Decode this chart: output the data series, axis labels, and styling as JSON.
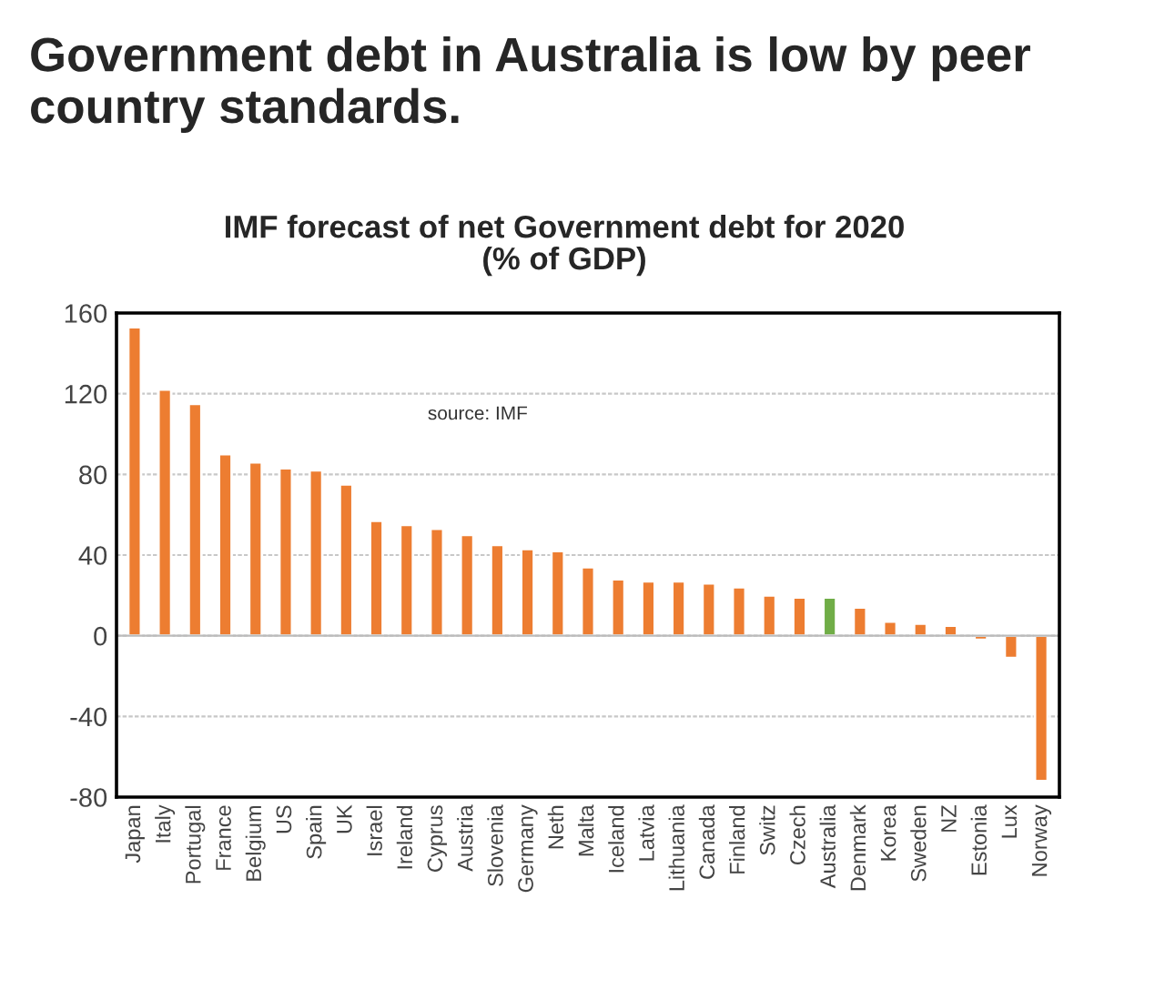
{
  "chart_data": {
    "type": "bar",
    "title": "Government debt in Australia is low by peer country standards.",
    "subtitle": "IMF forecast of net Government debt for 2020\n(% of GDP)",
    "categories": [
      "Japan",
      "Italy",
      "Portugal",
      "France",
      "Belgium",
      "US",
      "Spain",
      "UK",
      "Israel",
      "Ireland",
      "Cyprus",
      "Austria",
      "Slovenia",
      "Germany",
      "Neth",
      "Malta",
      "Iceland",
      "Latvia",
      "Lithuania",
      "Canada",
      "Finland",
      "Switz",
      "Czech",
      "Australia",
      "Denmark",
      "Korea",
      "Sweden",
      "NZ",
      "Estonia",
      "Lux",
      "Norway"
    ],
    "values": [
      153,
      122,
      115,
      90,
      86,
      83,
      82,
      75,
      57,
      55,
      53,
      50,
      45,
      43,
      42,
      34,
      28,
      27,
      27,
      26,
      24,
      20,
      19,
      19,
      14,
      7,
      6,
      5,
      -2,
      -11,
      -72
    ],
    "colors": [
      "#ed7d31",
      "#ed7d31",
      "#ed7d31",
      "#ed7d31",
      "#ed7d31",
      "#ed7d31",
      "#ed7d31",
      "#ed7d31",
      "#ed7d31",
      "#ed7d31",
      "#ed7d31",
      "#ed7d31",
      "#ed7d31",
      "#ed7d31",
      "#ed7d31",
      "#ed7d31",
      "#ed7d31",
      "#ed7d31",
      "#ed7d31",
      "#ed7d31",
      "#ed7d31",
      "#ed7d31",
      "#ed7d31",
      "#70ad47",
      "#ed7d31",
      "#ed7d31",
      "#ed7d31",
      "#ed7d31",
      "#ed7d31",
      "#ed7d31",
      "#ed7d31"
    ],
    "ylim": [
      -80,
      160
    ],
    "yticks": [
      -80,
      -40,
      0,
      40,
      80,
      120,
      160
    ],
    "annotations": [
      "source: IMF"
    ],
    "grid": "y",
    "legend": false
  }
}
